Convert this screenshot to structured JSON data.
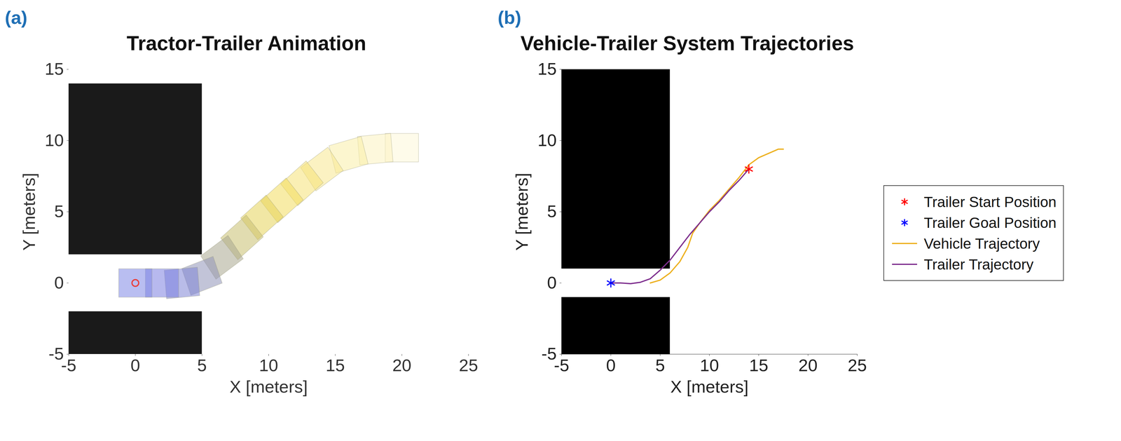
{
  "chart_data": [
    {
      "type": "animation",
      "panel_label": "(a)",
      "title": "Tractor-Trailer Animation",
      "x_label": "X [meters]",
      "y_label": "Y [meters]",
      "xlim": [
        -5,
        25
      ],
      "ylim": [
        -5,
        15
      ],
      "xticks": [
        -5,
        0,
        5,
        10,
        15,
        20,
        25
      ],
      "yticks": [
        -5,
        0,
        5,
        10,
        15
      ],
      "grid": false,
      "obstacles": [
        {
          "x1": -5,
          "x2": 5,
          "y1": 2,
          "y2": 14,
          "color": "#1a1a1a"
        },
        {
          "x1": -5,
          "x2": 5,
          "y1": -5,
          "y2": -2,
          "color": "#1a1a1a"
        }
      ],
      "vehicle_length": 2.5,
      "vehicle_width": 2,
      "poses": [
        {
          "x": 20,
          "y": 9.5,
          "heading": 0,
          "color": "#fdf8d8"
        },
        {
          "x": 18,
          "y": 9.4,
          "heading": 5,
          "color": "#fbf3c0"
        },
        {
          "x": 16,
          "y": 9.0,
          "heading": 15,
          "color": "#f9eea8"
        },
        {
          "x": 14,
          "y": 8.0,
          "heading": 35,
          "color": "#f7e88f"
        },
        {
          "x": 12.5,
          "y": 7.0,
          "heading": 40,
          "color": "#f5e277"
        },
        {
          "x": 11,
          "y": 5.8,
          "heading": 40,
          "color": "#f2dc5e"
        },
        {
          "x": 9.5,
          "y": 4.6,
          "heading": 40,
          "color": "#e6d45a"
        },
        {
          "x": 8,
          "y": 3.2,
          "heading": 40,
          "color": "#c9c070"
        },
        {
          "x": 6.5,
          "y": 1.8,
          "heading": 35,
          "color": "#a9a890"
        },
        {
          "x": 5,
          "y": 0.5,
          "heading": 20,
          "color": "#8f94b8"
        },
        {
          "x": 3.5,
          "y": 0,
          "heading": 5,
          "color": "#7f85d6"
        },
        {
          "x": 2,
          "y": 0,
          "heading": 0,
          "color": "#7b80e0"
        },
        {
          "x": 0,
          "y": 0,
          "heading": 0,
          "color": "#8088e6"
        }
      ],
      "marker_point": {
        "x": 0,
        "y": 0,
        "color": "#e8413c",
        "marker": "circle"
      }
    },
    {
      "type": "line",
      "panel_label": "(b)",
      "title": "Vehicle-Trailer System Trajectories",
      "x_label": "X [meters]",
      "y_label": "Y [meters]",
      "xlim": [
        -5,
        25
      ],
      "ylim": [
        -5,
        15
      ],
      "xticks": [
        -5,
        0,
        5,
        10,
        15,
        20,
        25
      ],
      "yticks": [
        -5,
        0,
        5,
        10,
        15
      ],
      "grid": false,
      "legend": "right",
      "obstacles": [
        {
          "x1": -5,
          "x2": 6,
          "y1": 1,
          "y2": 15,
          "color": "#000000"
        },
        {
          "x1": -5,
          "x2": 6,
          "y1": -5,
          "y2": -1,
          "color": "#000000"
        }
      ],
      "series": [
        {
          "name": "Trailer Start Position",
          "type": "scatter",
          "marker": "asterisk",
          "color": "#ff0000",
          "x": [
            14
          ],
          "y": [
            8
          ]
        },
        {
          "name": "Trailer Goal Position",
          "type": "scatter",
          "marker": "asterisk",
          "color": "#0000ff",
          "x": [
            0
          ],
          "y": [
            0
          ]
        },
        {
          "name": "Vehicle Trajectory",
          "type": "line",
          "line_style": "solid",
          "color": "#edb120",
          "x": [
            17.5,
            17,
            16,
            15,
            14,
            13,
            12,
            11,
            10,
            9,
            8.3,
            7.8,
            7,
            6,
            5,
            4
          ],
          "y": [
            9.4,
            9.4,
            9.1,
            8.8,
            8.3,
            7.4,
            6.6,
            5.8,
            5.1,
            4.2,
            3.5,
            2.5,
            1.5,
            0.7,
            0.2,
            0
          ]
        },
        {
          "name": "Trailer Trajectory",
          "type": "line",
          "line_style": "solid",
          "color": "#7e2f8e",
          "x": [
            14,
            13,
            12,
            11,
            10,
            9,
            8,
            7,
            6,
            5,
            4,
            3,
            2,
            1,
            0
          ],
          "y": [
            8,
            7.2,
            6.5,
            5.7,
            5,
            4.2,
            3.4,
            2.5,
            1.6,
            0.9,
            0.3,
            0.05,
            -0.05,
            0,
            0
          ]
        }
      ]
    }
  ]
}
